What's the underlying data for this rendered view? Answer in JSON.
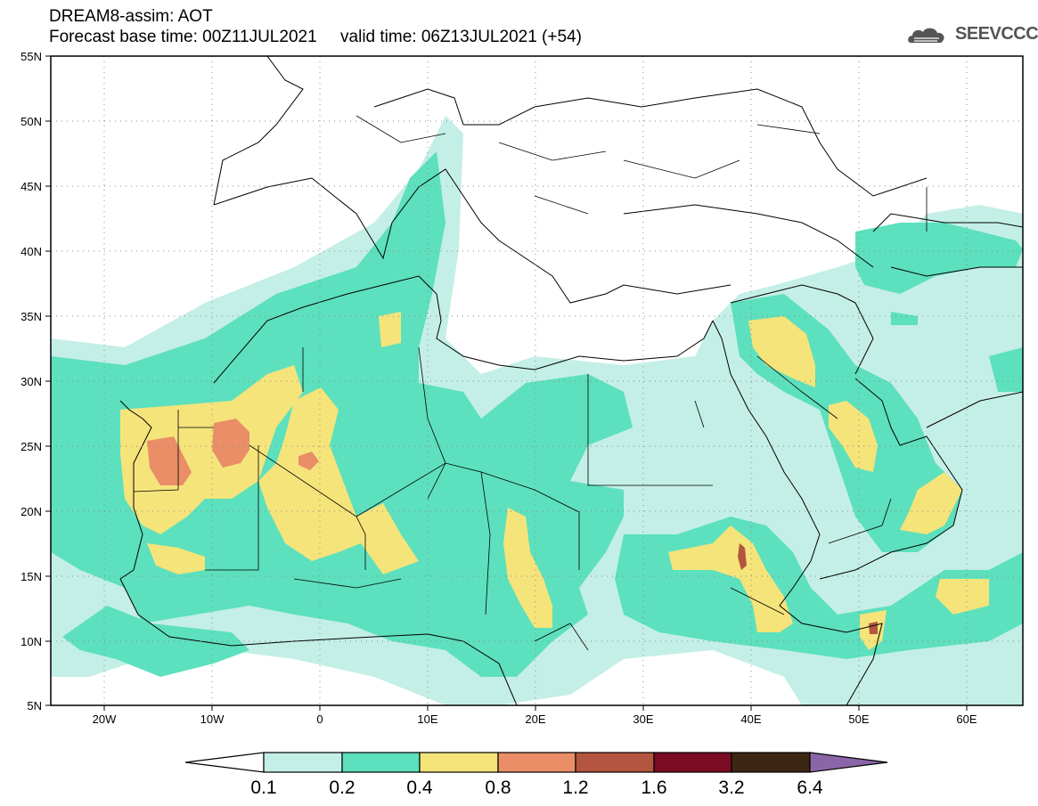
{
  "header": {
    "model_line": "DREAM8-assim: AOT",
    "time_line": "Forecast base time: 00Z11JUL2021     valid time: 06Z13JUL2021 (+54)"
  },
  "logo": {
    "text": "SEEVCCC",
    "icon": "cloud-icon"
  },
  "axes": {
    "lat_labels": [
      "55N",
      "50N",
      "45N",
      "40N",
      "35N",
      "30N",
      "25N",
      "20N",
      "15N",
      "10N",
      "5N"
    ],
    "lon_labels": [
      "20W",
      "10W",
      "0",
      "10E",
      "20E",
      "30E",
      "40E",
      "50E",
      "60E"
    ]
  },
  "colorbar": {
    "labels": [
      "0.1",
      "0.2",
      "0.4",
      "0.8",
      "1.2",
      "1.6",
      "3.2",
      "6.4"
    ],
    "colors": [
      "#ffffff",
      "#c4efe6",
      "#5de0bd",
      "#f5e47a",
      "#e98e67",
      "#b3553f",
      "#7b0a23",
      "#3d2612",
      "#8a66a8"
    ]
  },
  "aot_levels": {
    "l02": "#c4efe6",
    "l04": "#5de0bd",
    "l08": "#f5e47a",
    "l12": "#e98e67",
    "l16": "#b3553f"
  }
}
